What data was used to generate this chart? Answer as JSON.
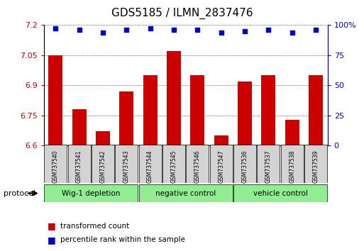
{
  "title": "GDS5185 / ILMN_2837476",
  "samples": [
    "GSM737540",
    "GSM737541",
    "GSM737542",
    "GSM737543",
    "GSM737544",
    "GSM737545",
    "GSM737546",
    "GSM737547",
    "GSM737536",
    "GSM737537",
    "GSM737538",
    "GSM737539"
  ],
  "bar_values": [
    7.05,
    6.78,
    6.67,
    6.87,
    6.95,
    7.07,
    6.95,
    6.65,
    6.92,
    6.95,
    6.73,
    6.95
  ],
  "percentile_values": [
    97,
    96,
    94,
    96,
    97,
    96,
    96,
    94,
    95,
    96,
    94,
    96
  ],
  "ylim_left": [
    6.6,
    7.2
  ],
  "ylim_right": [
    0,
    100
  ],
  "yticks_left": [
    6.6,
    6.75,
    6.9,
    7.05,
    7.2
  ],
  "yticks_right": [
    0,
    25,
    50,
    75,
    100
  ],
  "ytick_labels_left": [
    "6.6",
    "6.75",
    "6.9",
    "7.05",
    "7.2"
  ],
  "ytick_labels_right": [
    "0",
    "25",
    "50",
    "75",
    "100%"
  ],
  "bar_color": "#cc0000",
  "dot_color": "#0000cc",
  "bar_bottom": 6.6,
  "grid_color": "#000000",
  "groups": [
    {
      "label": "Wig-1 depletion",
      "start": 0,
      "end": 3
    },
    {
      "label": "negative control",
      "start": 4,
      "end": 7
    },
    {
      "label": "vehicle control",
      "start": 8,
      "end": 11
    }
  ],
  "group_color": "#90ee90",
  "sample_bg_color": "#d3d3d3",
  "xlabel_color": "#cc0000",
  "ylabel_right_color": "#0000cc",
  "protocol_label": "protocol",
  "legend_items": [
    {
      "color": "#cc0000",
      "label": "transformed count"
    },
    {
      "color": "#0000cc",
      "label": "percentile rank within the sample"
    }
  ]
}
